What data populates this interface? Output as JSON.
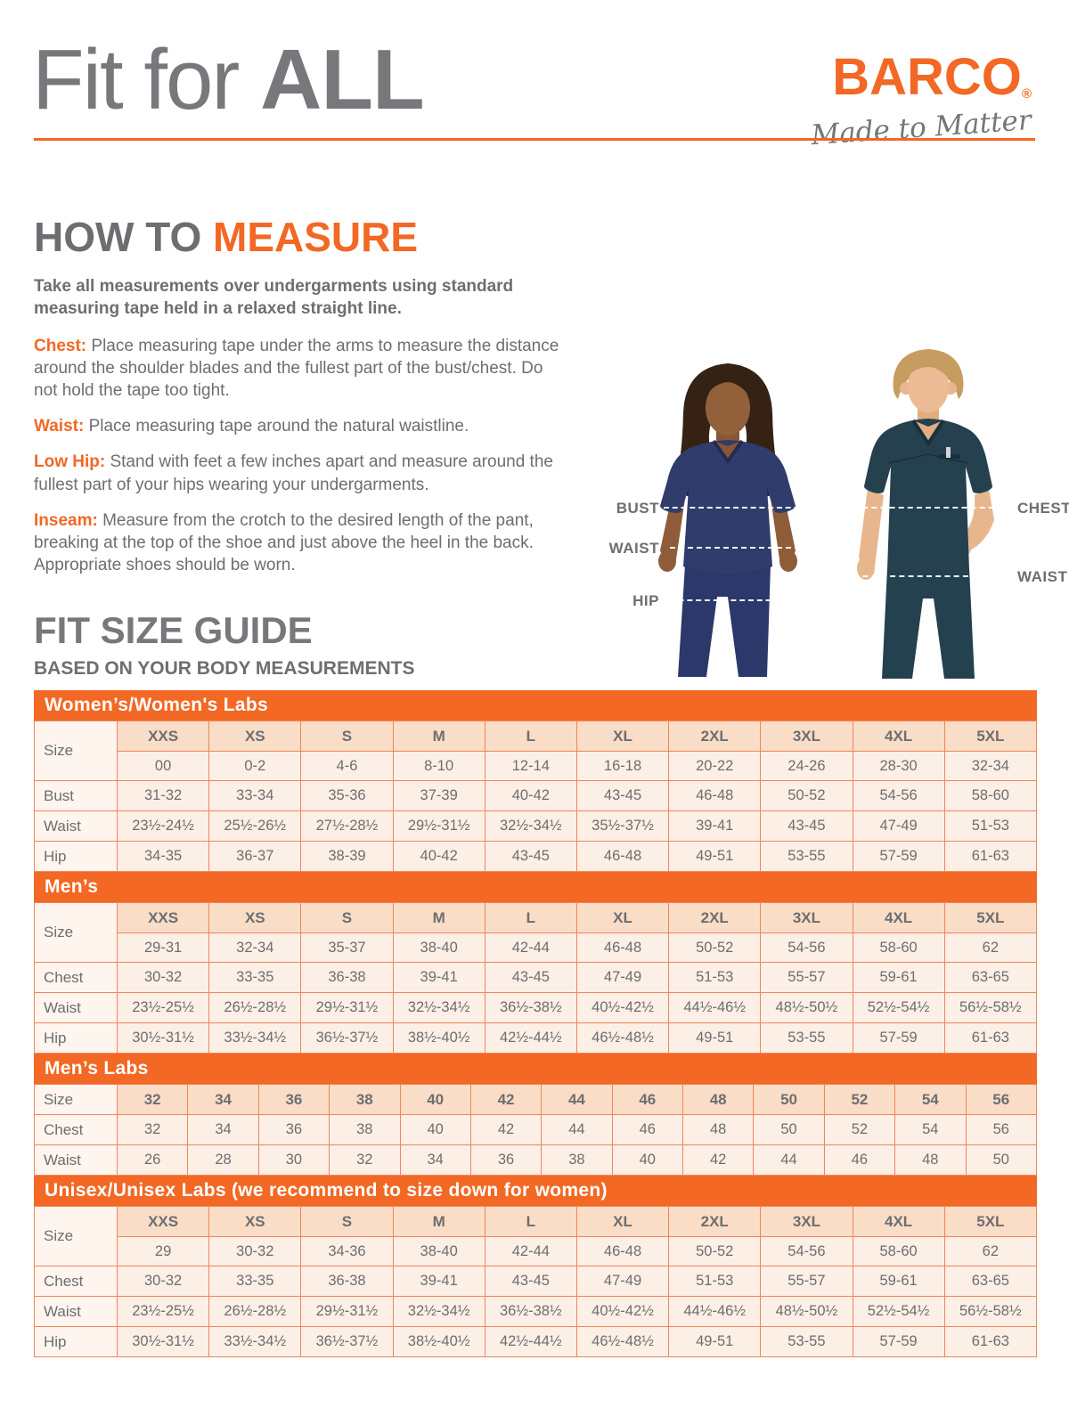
{
  "page": {
    "title_regular": "Fit for ",
    "title_bold": "ALL"
  },
  "brand": {
    "name": "BARCO",
    "reg": "®",
    "tagline": "Made to Matter"
  },
  "colors": {
    "accent_orange": "#f26824",
    "heading_gray": "#77787b",
    "body_gray": "#6d6e71",
    "table_border": "#f0855c",
    "table_cell_bg": "#fcefe5",
    "table_header_cell_bg": "#f9ddc6",
    "table_label_cell_bg": "#fdf5ee",
    "female_scrub_navy": "#303c6b",
    "male_scrub_teal": "#25404e"
  },
  "how_to_measure": {
    "heading_gray": "HOW TO ",
    "heading_accent": "MEASURE",
    "intro": "Take all measurements over undergarments using standard measuring tape held in a relaxed straight line.",
    "items": [
      {
        "label": "Chest:",
        "text": "Place measuring tape under the arms to measure the distance around the shoulder blades and the fullest part of the bust/chest. Do not hold the tape too tight."
      },
      {
        "label": "Waist:",
        "text": "Place measuring tape around the natural waistline."
      },
      {
        "label": "Low Hip:",
        "text": "Stand with feet a few inches apart and measure around the fullest part of your hips wearing your undergarments."
      },
      {
        "label": "Inseam:",
        "text": "Measure from the crotch to the desired length of the pant, breaking at the top of the shoe and just above the heel in the back. Appropriate shoes should be worn."
      }
    ]
  },
  "figures": {
    "female": {
      "labels": [
        "BUST",
        "WAIST",
        "HIP"
      ]
    },
    "male": {
      "labels": [
        "CHEST",
        "WAIST"
      ]
    }
  },
  "size_guide": {
    "heading": "FIT SIZE GUIDE",
    "subheading": "BASED ON YOUR BODY MEASUREMENTS",
    "tables": [
      {
        "title": "Women’s/Women's Labs",
        "size_label": "Size",
        "sizes": [
          "XXS",
          "XS",
          "S",
          "M",
          "L",
          "XL",
          "2XL",
          "3XL",
          "4XL",
          "5XL"
        ],
        "alt_sizes": [
          "00",
          "0-2",
          "4-6",
          "8-10",
          "12-14",
          "16-18",
          "20-22",
          "24-26",
          "28-30",
          "32-34"
        ],
        "rows": [
          {
            "label": "Bust",
            "values": [
              "31-32",
              "33-34",
              "35-36",
              "37-39",
              "40-42",
              "43-45",
              "46-48",
              "50-52",
              "54-56",
              "58-60"
            ]
          },
          {
            "label": "Waist",
            "values": [
              "23½-24½",
              "25½-26½",
              "27½-28½",
              "29½-31½",
              "32½-34½",
              "35½-37½",
              "39-41",
              "43-45",
              "47-49",
              "51-53"
            ]
          },
          {
            "label": "Hip",
            "values": [
              "34-35",
              "36-37",
              "38-39",
              "40-42",
              "43-45",
              "46-48",
              "49-51",
              "53-55",
              "57-59",
              "61-63"
            ]
          }
        ]
      },
      {
        "title": "Men’s",
        "size_label": "Size",
        "sizes": [
          "XXS",
          "XS",
          "S",
          "M",
          "L",
          "XL",
          "2XL",
          "3XL",
          "4XL",
          "5XL"
        ],
        "alt_sizes": [
          "29-31",
          "32-34",
          "35-37",
          "38-40",
          "42-44",
          "46-48",
          "50-52",
          "54-56",
          "58-60",
          "62"
        ],
        "rows": [
          {
            "label": "Chest",
            "values": [
              "30-32",
              "33-35",
              "36-38",
              "39-41",
              "43-45",
              "47-49",
              "51-53",
              "55-57",
              "59-61",
              "63-65"
            ]
          },
          {
            "label": "Waist",
            "values": [
              "23½-25½",
              "26½-28½",
              "29½-31½",
              "32½-34½",
              "36½-38½",
              "40½-42½",
              "44½-46½",
              "48½-50½",
              "52½-54½",
              "56½-58½"
            ]
          },
          {
            "label": "Hip",
            "values": [
              "30½-31½",
              "33½-34½",
              "36½-37½",
              "38½-40½",
              "42½-44½",
              "46½-48½",
              "49-51",
              "53-55",
              "57-59",
              "61-63"
            ]
          }
        ]
      },
      {
        "title": "Men’s Labs",
        "size_label": "Size",
        "sizes": [
          "32",
          "34",
          "36",
          "38",
          "40",
          "42",
          "44",
          "46",
          "48",
          "50",
          "52",
          "54",
          "56"
        ],
        "alt_sizes": null,
        "rows": [
          {
            "label": "Chest",
            "values": [
              "32",
              "34",
              "36",
              "38",
              "40",
              "42",
              "44",
              "46",
              "48",
              "50",
              "52",
              "54",
              "56"
            ]
          },
          {
            "label": "Waist",
            "values": [
              "26",
              "28",
              "30",
              "32",
              "34",
              "36",
              "38",
              "40",
              "42",
              "44",
              "46",
              "48",
              "50"
            ]
          }
        ]
      },
      {
        "title": "Unisex/Unisex Labs (we recommend to size down for women)",
        "size_label": "Size",
        "sizes": [
          "XXS",
          "XS",
          "S",
          "M",
          "L",
          "XL",
          "2XL",
          "3XL",
          "4XL",
          "5XL"
        ],
        "alt_sizes": [
          "29",
          "30-32",
          "34-36",
          "38-40",
          "42-44",
          "46-48",
          "50-52",
          "54-56",
          "58-60",
          "62"
        ],
        "rows": [
          {
            "label": "Chest",
            "values": [
              "30-32",
              "33-35",
              "36-38",
              "39-41",
              "43-45",
              "47-49",
              "51-53",
              "55-57",
              "59-61",
              "63-65"
            ]
          },
          {
            "label": "Waist",
            "values": [
              "23½-25½",
              "26½-28½",
              "29½-31½",
              "32½-34½",
              "36½-38½",
              "40½-42½",
              "44½-46½",
              "48½-50½",
              "52½-54½",
              "56½-58½"
            ]
          },
          {
            "label": "Hip",
            "values": [
              "30½-31½",
              "33½-34½",
              "36½-37½",
              "38½-40½",
              "42½-44½",
              "46½-48½",
              "49-51",
              "53-55",
              "57-59",
              "61-63"
            ]
          }
        ]
      }
    ]
  }
}
